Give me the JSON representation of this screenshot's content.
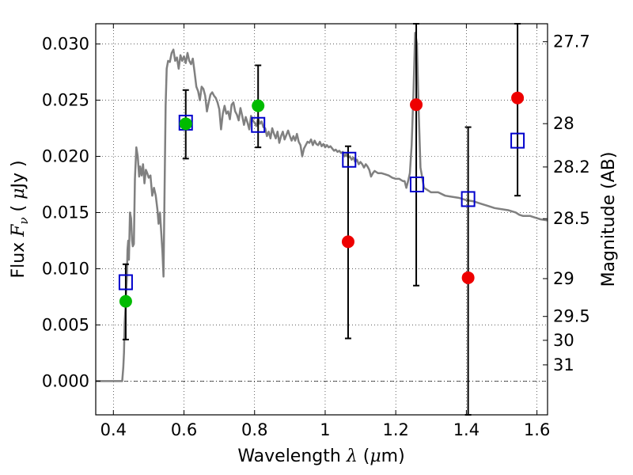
{
  "chart_data": {
    "type": "scatter",
    "xlabel": {
      "prefix": "Wavelength  ",
      "symbol": "λ",
      "suffix_pre": " (",
      "unit_symbol": "μ",
      "unit": "m)"
    },
    "ylabel": {
      "prefix": "Flux  ",
      "symbol": "F",
      "subscript": "ν",
      "unit_pre": "  ( ",
      "unit_symbol": "μ",
      "unit": "Jy )"
    },
    "y2label": "Magnitude (AB)",
    "xlim": [
      0.35,
      1.63
    ],
    "ylim": [
      -0.003,
      0.0318
    ],
    "grid": true,
    "x_ticks": [
      {
        "value": 0.4,
        "label": "0.4"
      },
      {
        "value": 0.6,
        "label": "0.6"
      },
      {
        "value": 0.8,
        "label": "0.8"
      },
      {
        "value": 1.0,
        "label": "1"
      },
      {
        "value": 1.2,
        "label": "1.2"
      },
      {
        "value": 1.4,
        "label": "1.4"
      },
      {
        "value": 1.6,
        "label": "1.6"
      }
    ],
    "y_ticks": [
      {
        "value": 0.0,
        "label": "0.000"
      },
      {
        "value": 0.005,
        "label": "0.005"
      },
      {
        "value": 0.01,
        "label": "0.010"
      },
      {
        "value": 0.015,
        "label": "0.015"
      },
      {
        "value": 0.02,
        "label": "0.020"
      },
      {
        "value": 0.025,
        "label": "0.025"
      },
      {
        "value": 0.03,
        "label": "0.030"
      }
    ],
    "y2_ticks": [
      {
        "value": 27.7,
        "label": "27.7"
      },
      {
        "value": 28.0,
        "label": "28"
      },
      {
        "value": 28.2,
        "label": "28.2"
      },
      {
        "value": 28.5,
        "label": "28.5"
      },
      {
        "value": 29.0,
        "label": "29"
      },
      {
        "value": 29.5,
        "label": "29.5"
      },
      {
        "value": 30.0,
        "label": "30"
      },
      {
        "value": 31.0,
        "label": "31"
      }
    ],
    "colors": {
      "model": "#808080",
      "green_points": "#00bb00",
      "red_points": "#ee0000",
      "squares": "#0000cc",
      "errorbars": "#000000"
    },
    "model_spectrum": {
      "name": "",
      "points": [
        [
          0.35,
          0.0
        ],
        [
          0.425,
          0.0
        ],
        [
          0.428,
          0.0012
        ],
        [
          0.43,
          0.0025
        ],
        [
          0.432,
          0.0052
        ],
        [
          0.434,
          0.0063
        ],
        [
          0.436,
          0.0078
        ],
        [
          0.438,
          0.009
        ],
        [
          0.44,
          0.0117
        ],
        [
          0.442,
          0.0125
        ],
        [
          0.444,
          0.0108
        ],
        [
          0.447,
          0.015
        ],
        [
          0.45,
          0.0145
        ],
        [
          0.453,
          0.0125
        ],
        [
          0.455,
          0.012
        ],
        [
          0.458,
          0.0122
        ],
        [
          0.461,
          0.018
        ],
        [
          0.465,
          0.0208
        ],
        [
          0.469,
          0.02
        ],
        [
          0.473,
          0.0182
        ],
        [
          0.476,
          0.0191
        ],
        [
          0.48,
          0.0183
        ],
        [
          0.484,
          0.0193
        ],
        [
          0.488,
          0.0176
        ],
        [
          0.492,
          0.0188
        ],
        [
          0.496,
          0.0185
        ],
        [
          0.5,
          0.0181
        ],
        [
          0.505,
          0.0183
        ],
        [
          0.51,
          0.0165
        ],
        [
          0.515,
          0.0172
        ],
        [
          0.52,
          0.0165
        ],
        [
          0.525,
          0.0152
        ],
        [
          0.528,
          0.014
        ],
        [
          0.532,
          0.015
        ],
        [
          0.536,
          0.013
        ],
        [
          0.539,
          0.0115
        ],
        [
          0.542,
          0.0093
        ],
        [
          0.545,
          0.017
        ],
        [
          0.548,
          0.0245
        ],
        [
          0.551,
          0.0278
        ],
        [
          0.555,
          0.0285
        ],
        [
          0.56,
          0.0284
        ],
        [
          0.565,
          0.0292
        ],
        [
          0.57,
          0.0295
        ],
        [
          0.575,
          0.0285
        ],
        [
          0.58,
          0.0288
        ],
        [
          0.585,
          0.0278
        ],
        [
          0.59,
          0.029
        ],
        [
          0.595,
          0.0285
        ],
        [
          0.6,
          0.0289
        ],
        [
          0.605,
          0.0283
        ],
        [
          0.61,
          0.0292
        ],
        [
          0.615,
          0.0285
        ],
        [
          0.62,
          0.0282
        ],
        [
          0.625,
          0.0287
        ],
        [
          0.63,
          0.0275
        ],
        [
          0.635,
          0.0262
        ],
        [
          0.64,
          0.0258
        ],
        [
          0.645,
          0.025
        ],
        [
          0.65,
          0.0262
        ],
        [
          0.655,
          0.026
        ],
        [
          0.66,
          0.0254
        ],
        [
          0.665,
          0.024
        ],
        [
          0.67,
          0.0248
        ],
        [
          0.675,
          0.0255
        ],
        [
          0.68,
          0.0257
        ],
        [
          0.685,
          0.0254
        ],
        [
          0.69,
          0.0252
        ],
        [
          0.695,
          0.0248
        ],
        [
          0.7,
          0.0242
        ],
        [
          0.705,
          0.0224
        ],
        [
          0.71,
          0.0238
        ],
        [
          0.715,
          0.0245
        ],
        [
          0.72,
          0.0238
        ],
        [
          0.725,
          0.024
        ],
        [
          0.73,
          0.0233
        ],
        [
          0.735,
          0.0246
        ],
        [
          0.74,
          0.0248
        ],
        [
          0.745,
          0.024
        ],
        [
          0.75,
          0.0237
        ],
        [
          0.755,
          0.0232
        ],
        [
          0.76,
          0.0243
        ],
        [
          0.765,
          0.0236
        ],
        [
          0.77,
          0.0228
        ],
        [
          0.775,
          0.0235
        ],
        [
          0.78,
          0.023
        ],
        [
          0.785,
          0.0224
        ],
        [
          0.79,
          0.0236
        ],
        [
          0.795,
          0.0232
        ],
        [
          0.8,
          0.023
        ],
        [
          0.805,
          0.0227
        ],
        [
          0.81,
          0.0234
        ],
        [
          0.815,
          0.0229
        ],
        [
          0.82,
          0.0231
        ],
        [
          0.825,
          0.0226
        ],
        [
          0.83,
          0.0225
        ],
        [
          0.835,
          0.0218
        ],
        [
          0.84,
          0.0222
        ],
        [
          0.845,
          0.0216
        ],
        [
          0.85,
          0.0225
        ],
        [
          0.855,
          0.022
        ],
        [
          0.86,
          0.0216
        ],
        [
          0.865,
          0.0222
        ],
        [
          0.87,
          0.0212
        ],
        [
          0.875,
          0.0218
        ],
        [
          0.88,
          0.0222
        ],
        [
          0.885,
          0.0215
        ],
        [
          0.89,
          0.0219
        ],
        [
          0.895,
          0.0223
        ],
        [
          0.9,
          0.0218
        ],
        [
          0.905,
          0.0214
        ],
        [
          0.91,
          0.0218
        ],
        [
          0.915,
          0.0214
        ],
        [
          0.92,
          0.022
        ],
        [
          0.925,
          0.0213
        ],
        [
          0.93,
          0.021
        ],
        [
          0.935,
          0.02
        ],
        [
          0.94,
          0.0207
        ],
        [
          0.945,
          0.021
        ],
        [
          0.95,
          0.0213
        ],
        [
          0.955,
          0.0212
        ],
        [
          0.96,
          0.0215
        ],
        [
          0.965,
          0.021
        ],
        [
          0.97,
          0.0214
        ],
        [
          0.975,
          0.0211
        ],
        [
          0.98,
          0.021
        ],
        [
          0.985,
          0.0213
        ],
        [
          0.99,
          0.0209
        ],
        [
          0.995,
          0.0211
        ],
        [
          1.0,
          0.0208
        ],
        [
          1.005,
          0.021
        ],
        [
          1.01,
          0.0208
        ],
        [
          1.015,
          0.0209
        ],
        [
          1.02,
          0.0207
        ],
        [
          1.025,
          0.0205
        ],
        [
          1.03,
          0.0206
        ],
        [
          1.035,
          0.0204
        ],
        [
          1.04,
          0.0205
        ],
        [
          1.045,
          0.0203
        ],
        [
          1.05,
          0.0204
        ],
        [
          1.055,
          0.02
        ],
        [
          1.06,
          0.0202
        ],
        [
          1.065,
          0.0199
        ],
        [
          1.07,
          0.02
        ],
        [
          1.075,
          0.0197
        ],
        [
          1.08,
          0.0199
        ],
        [
          1.085,
          0.0195
        ],
        [
          1.09,
          0.0197
        ],
        [
          1.095,
          0.0193
        ],
        [
          1.1,
          0.0195
        ],
        [
          1.105,
          0.0193
        ],
        [
          1.11,
          0.019
        ],
        [
          1.115,
          0.0193
        ],
        [
          1.12,
          0.0191
        ],
        [
          1.125,
          0.0188
        ],
        [
          1.13,
          0.0182
        ],
        [
          1.135,
          0.0185
        ],
        [
          1.14,
          0.0187
        ],
        [
          1.145,
          0.0186
        ],
        [
          1.15,
          0.0185
        ],
        [
          1.16,
          0.0185
        ],
        [
          1.17,
          0.0184
        ],
        [
          1.18,
          0.0183
        ],
        [
          1.19,
          0.0181
        ],
        [
          1.2,
          0.018
        ],
        [
          1.21,
          0.018
        ],
        [
          1.22,
          0.0178
        ],
        [
          1.225,
          0.0178
        ],
        [
          1.23,
          0.0172
        ],
        [
          1.235,
          0.0178
        ],
        [
          1.24,
          0.0185
        ],
        [
          1.245,
          0.021
        ],
        [
          1.25,
          0.0255
        ],
        [
          1.255,
          0.031
        ],
        [
          1.26,
          0.03
        ],
        [
          1.265,
          0.024
        ],
        [
          1.27,
          0.019
        ],
        [
          1.28,
          0.0172
        ],
        [
          1.3,
          0.0168
        ],
        [
          1.32,
          0.0168
        ],
        [
          1.34,
          0.0165
        ],
        [
          1.36,
          0.0164
        ],
        [
          1.38,
          0.0163
        ],
        [
          1.4,
          0.0161
        ],
        [
          1.42,
          0.016
        ],
        [
          1.44,
          0.0158
        ],
        [
          1.46,
          0.0156
        ],
        [
          1.48,
          0.0154
        ],
        [
          1.5,
          0.0153
        ],
        [
          1.52,
          0.0152
        ],
        [
          1.54,
          0.015
        ],
        [
          1.55,
          0.0148
        ],
        [
          1.56,
          0.0147
        ],
        [
          1.57,
          0.0147
        ],
        [
          1.58,
          0.0147
        ],
        [
          1.59,
          0.0146
        ],
        [
          1.6,
          0.0145
        ],
        [
          1.61,
          0.0144
        ],
        [
          1.63,
          0.0143
        ]
      ]
    },
    "errorbar_points": [
      {
        "x": 0.435,
        "y": 0.0071,
        "ylo": 0.0037,
        "yhi": 0.0104
      },
      {
        "x": 0.605,
        "y": 0.0229,
        "ylo": 0.0198,
        "yhi": 0.0259
      },
      {
        "x": 0.81,
        "y": 0.0245,
        "ylo": 0.0208,
        "yhi": 0.0281
      },
      {
        "x": 1.065,
        "y": 0.0124,
        "ylo": 0.0038,
        "yhi": 0.0209
      },
      {
        "x": 1.258,
        "y": 0.0246,
        "ylo": 0.0085,
        "yhi": 0.0318
      },
      {
        "x": 1.405,
        "y": 0.0092,
        "ylo": -0.003,
        "yhi": 0.0226
      },
      {
        "x": 1.545,
        "y": 0.0252,
        "ylo": 0.0165,
        "yhi": 0.0318
      }
    ],
    "green_points": [
      {
        "x": 0.435,
        "y": 0.0071
      },
      {
        "x": 0.605,
        "y": 0.0229
      },
      {
        "x": 0.81,
        "y": 0.0245
      }
    ],
    "red_points": [
      {
        "x": 1.065,
        "y": 0.0124
      },
      {
        "x": 1.258,
        "y": 0.0246
      },
      {
        "x": 1.405,
        "y": 0.0092
      },
      {
        "x": 1.545,
        "y": 0.0252
      }
    ],
    "model_squares": [
      {
        "x": 0.435,
        "y": 0.0088
      },
      {
        "x": 0.605,
        "y": 0.023
      },
      {
        "x": 0.81,
        "y": 0.0228
      },
      {
        "x": 1.068,
        "y": 0.0197
      },
      {
        "x": 1.26,
        "y": 0.0175
      },
      {
        "x": 1.405,
        "y": 0.0162
      },
      {
        "x": 1.545,
        "y": 0.0214
      }
    ]
  }
}
